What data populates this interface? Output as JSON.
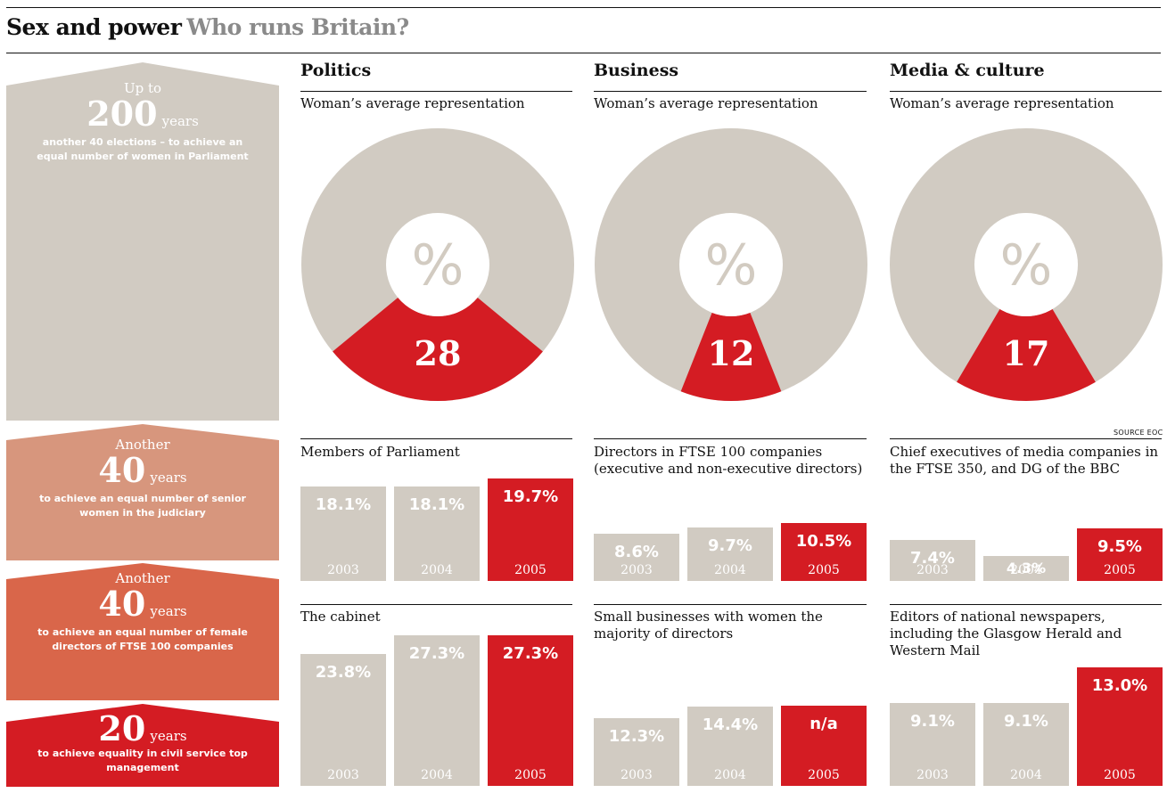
{
  "header": {
    "title": "Sex and power",
    "subtitle": "Who runs Britain?",
    "source": "SOURCE EOC"
  },
  "colors": {
    "grey": "#d1cbc2",
    "red": "#d41c23",
    "pink": "#d7967d",
    "orange": "#d9664a",
    "text": "#111111"
  },
  "arrows": [
    {
      "pre": "Up to",
      "number": "200",
      "unit": "years",
      "desc": "another 40 elections – to achieve an equal number of women in Parliament"
    },
    {
      "pre": "Another",
      "number": "40",
      "unit": "years",
      "desc": "to achieve an equal number of senior women in the judiciary"
    },
    {
      "pre": "Another",
      "number": "40",
      "unit": "years",
      "desc": "to achieve an equal number of female directors of FTSE 100 companies"
    },
    {
      "pre": "",
      "number": "20",
      "unit": "years",
      "desc": "to achieve equality in civil service top management"
    }
  ],
  "sections": [
    {
      "title": "Politics",
      "subtitle": "Woman’s average representation"
    },
    {
      "title": "Business",
      "subtitle": "Woman’s average representation"
    },
    {
      "title": "Media & culture",
      "subtitle": "Woman’s average representation"
    }
  ],
  "chart_data": [
    {
      "type": "pie",
      "title": "Politics",
      "subtitle": "Woman’s average representation",
      "center_symbol": "%",
      "value": 28,
      "label": "28"
    },
    {
      "type": "pie",
      "title": "Business",
      "subtitle": "Woman’s average representation",
      "center_symbol": "%",
      "value": 12,
      "label": "12"
    },
    {
      "type": "pie",
      "title": "Media & culture",
      "subtitle": "Woman’s average representation",
      "center_symbol": "%",
      "value": 17,
      "label": "17"
    },
    {
      "type": "bar",
      "title": "Members of Parliament",
      "categories": [
        "2003",
        "2004",
        "2005"
      ],
      "values": [
        18.1,
        18.1,
        19.7
      ],
      "labels": [
        "18.1%",
        "18.1%",
        "19.7%"
      ]
    },
    {
      "type": "bar",
      "title": "Directors in FTSE 100 companies (executive and non-executive directors)",
      "categories": [
        "2003",
        "2004",
        "2005"
      ],
      "values": [
        8.6,
        9.7,
        10.5
      ],
      "labels": [
        "8.6%",
        "9.7%",
        "10.5%"
      ]
    },
    {
      "type": "bar",
      "title": "Chief executives of media companies in the FTSE 350, and DG of the BBC",
      "categories": [
        "2003",
        "2004",
        "2005"
      ],
      "values": [
        7.4,
        4.3,
        9.5
      ],
      "labels": [
        "7.4%",
        "4.3%",
        "9.5%"
      ]
    },
    {
      "type": "bar",
      "title": "The cabinet",
      "categories": [
        "2003",
        "2004",
        "2005"
      ],
      "values": [
        23.8,
        27.3,
        27.3
      ],
      "labels": [
        "23.8%",
        "27.3%",
        "27.3%"
      ]
    },
    {
      "type": "bar",
      "title": "Small businesses with women the majority of directors",
      "categories": [
        "2003",
        "2004",
        "2005"
      ],
      "values": [
        12.3,
        14.4,
        null
      ],
      "labels": [
        "12.3%",
        "14.4%",
        "n/a"
      ]
    },
    {
      "type": "bar",
      "title": "Editors of national newspapers, including the Glasgow Herald and Western Mail",
      "categories": [
        "2003",
        "2004",
        "2005"
      ],
      "values": [
        9.1,
        9.1,
        13.0
      ],
      "labels": [
        "9.1%",
        "9.1%",
        "13.0%"
      ]
    }
  ]
}
